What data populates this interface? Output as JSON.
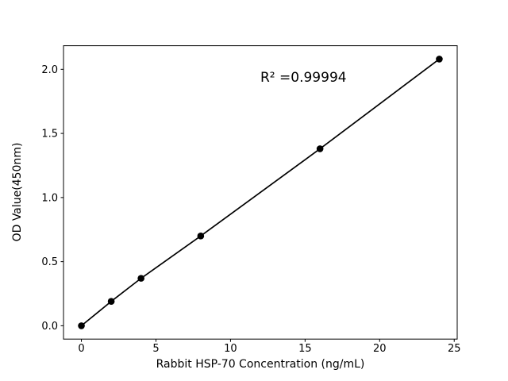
{
  "chart_data": {
    "type": "line",
    "title": "",
    "xlabel": "Rabbit HSP-70 Concentration (ng/mL)",
    "ylabel": "OD Value(450nm)",
    "x": [
      0,
      2,
      4,
      8,
      16,
      24
    ],
    "y": [
      0.0,
      0.19,
      0.37,
      0.7,
      1.38,
      2.08
    ],
    "annotation": {
      "text": "R² =0.99994",
      "x": 12,
      "y": 1.9
    },
    "xlim": [
      -1.2,
      25.2
    ],
    "ylim": [
      -0.104,
      2.184
    ],
    "xtick_values": [
      0,
      5,
      10,
      15,
      20,
      25
    ],
    "xtick_labels": [
      "0",
      "5",
      "10",
      "15",
      "20",
      "25"
    ],
    "ytick_values": [
      0.0,
      0.5,
      1.0,
      1.5,
      2.0
    ],
    "ytick_labels": [
      "0.0",
      "0.5",
      "1.0",
      "1.5",
      "2.0"
    ],
    "line_color": "#000000",
    "marker_color": "#000000",
    "background_color": "#ffffff",
    "grid": false,
    "legend": null
  }
}
